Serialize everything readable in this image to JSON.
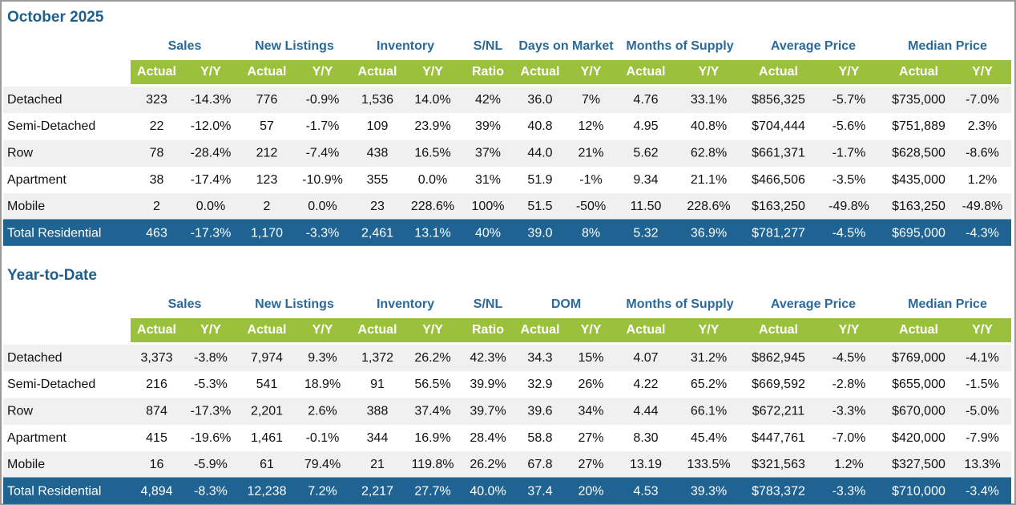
{
  "sections": [
    {
      "title": "October 2025",
      "groups": [
        "Sales",
        "New Listings",
        "Inventory",
        "S/NL",
        "Days on Market",
        "Months of Supply",
        "Average Price",
        "Median Price"
      ],
      "subheaders": [
        "Actual",
        "Y/Y",
        "Actual",
        "Y/Y",
        "Actual",
        "Y/Y",
        "Ratio",
        "Actual",
        "Y/Y",
        "Actual",
        "Y/Y",
        "Actual",
        "Y/Y",
        "Actual",
        "Y/Y"
      ],
      "rows": [
        {
          "label": "Detached",
          "cells": [
            "323",
            "-14.3%",
            "776",
            "-0.9%",
            "1,536",
            "14.0%",
            "42%",
            "36.0",
            "7%",
            "4.76",
            "33.1%",
            "$856,325",
            "-5.7%",
            "$735,000",
            "-7.0%"
          ]
        },
        {
          "label": "Semi-Detached",
          "cells": [
            "22",
            "-12.0%",
            "57",
            "-1.7%",
            "109",
            "23.9%",
            "39%",
            "40.8",
            "12%",
            "4.95",
            "40.8%",
            "$704,444",
            "-5.6%",
            "$751,889",
            "2.3%"
          ]
        },
        {
          "label": "Row",
          "cells": [
            "78",
            "-28.4%",
            "212",
            "-7.4%",
            "438",
            "16.5%",
            "37%",
            "44.0",
            "21%",
            "5.62",
            "62.8%",
            "$661,371",
            "-1.7%",
            "$628,500",
            "-8.6%"
          ]
        },
        {
          "label": "Apartment",
          "cells": [
            "38",
            "-17.4%",
            "123",
            "-10.9%",
            "355",
            "0.0%",
            "31%",
            "51.9",
            "-1%",
            "9.34",
            "21.1%",
            "$466,506",
            "-3.5%",
            "$435,000",
            "1.2%"
          ]
        },
        {
          "label": "Mobile",
          "cells": [
            "2",
            "0.0%",
            "2",
            "0.0%",
            "23",
            "228.6%",
            "100%",
            "51.5",
            "-50%",
            "11.50",
            "228.6%",
            "$163,250",
            "-49.8%",
            "$163,250",
            "-49.8%"
          ]
        }
      ],
      "total": {
        "label": "Total Residential",
        "cells": [
          "463",
          "-17.3%",
          "1,170",
          "-3.3%",
          "2,461",
          "13.1%",
          "40%",
          "39.0",
          "8%",
          "5.32",
          "36.9%",
          "$781,277",
          "-4.5%",
          "$695,000",
          "-4.3%"
        ]
      }
    },
    {
      "title": "Year-to-Date",
      "groups": [
        "Sales",
        "New Listings",
        "Inventory",
        "S/NL",
        "DOM",
        "Months of Supply",
        "Average Price",
        "Median Price"
      ],
      "subheaders": [
        "Actual",
        "Y/Y",
        "Actual",
        "Y/Y",
        "Actual",
        "Y/Y",
        "Ratio",
        "Actual",
        "Y/Y",
        "Actual",
        "Y/Y",
        "Actual",
        "Y/Y",
        "Actual",
        "Y/Y"
      ],
      "rows": [
        {
          "label": "Detached",
          "cells": [
            "3,373",
            "-3.8%",
            "7,974",
            "9.3%",
            "1,372",
            "26.2%",
            "42.3%",
            "34.3",
            "15%",
            "4.07",
            "31.2%",
            "$862,945",
            "-4.5%",
            "$769,000",
            "-4.1%"
          ]
        },
        {
          "label": "Semi-Detached",
          "cells": [
            "216",
            "-5.3%",
            "541",
            "18.9%",
            "91",
            "56.5%",
            "39.9%",
            "32.9",
            "26%",
            "4.22",
            "65.2%",
            "$669,592",
            "-2.8%",
            "$655,000",
            "-1.5%"
          ]
        },
        {
          "label": "Row",
          "cells": [
            "874",
            "-17.3%",
            "2,201",
            "2.6%",
            "388",
            "37.4%",
            "39.7%",
            "39.6",
            "34%",
            "4.44",
            "66.1%",
            "$672,211",
            "-3.3%",
            "$670,000",
            "-5.0%"
          ]
        },
        {
          "label": "Apartment",
          "cells": [
            "415",
            "-19.6%",
            "1,461",
            "-0.1%",
            "344",
            "16.9%",
            "28.4%",
            "58.8",
            "27%",
            "8.30",
            "45.4%",
            "$447,761",
            "-7.0%",
            "$420,000",
            "-7.9%"
          ]
        },
        {
          "label": "Mobile",
          "cells": [
            "16",
            "-5.9%",
            "61",
            "79.4%",
            "21",
            "119.8%",
            "26.2%",
            "67.8",
            "27%",
            "13.19",
            "133.5%",
            "$321,563",
            "1.2%",
            "$327,500",
            "13.3%"
          ]
        }
      ],
      "total": {
        "label": "Total Residential",
        "cells": [
          "4,894",
          "-8.3%",
          "12,238",
          "7.2%",
          "2,217",
          "27.7%",
          "40.0%",
          "37.4",
          "20%",
          "4.53",
          "39.3%",
          "$783,372",
          "-3.3%",
          "$710,000",
          "-3.4%"
        ]
      }
    }
  ]
}
